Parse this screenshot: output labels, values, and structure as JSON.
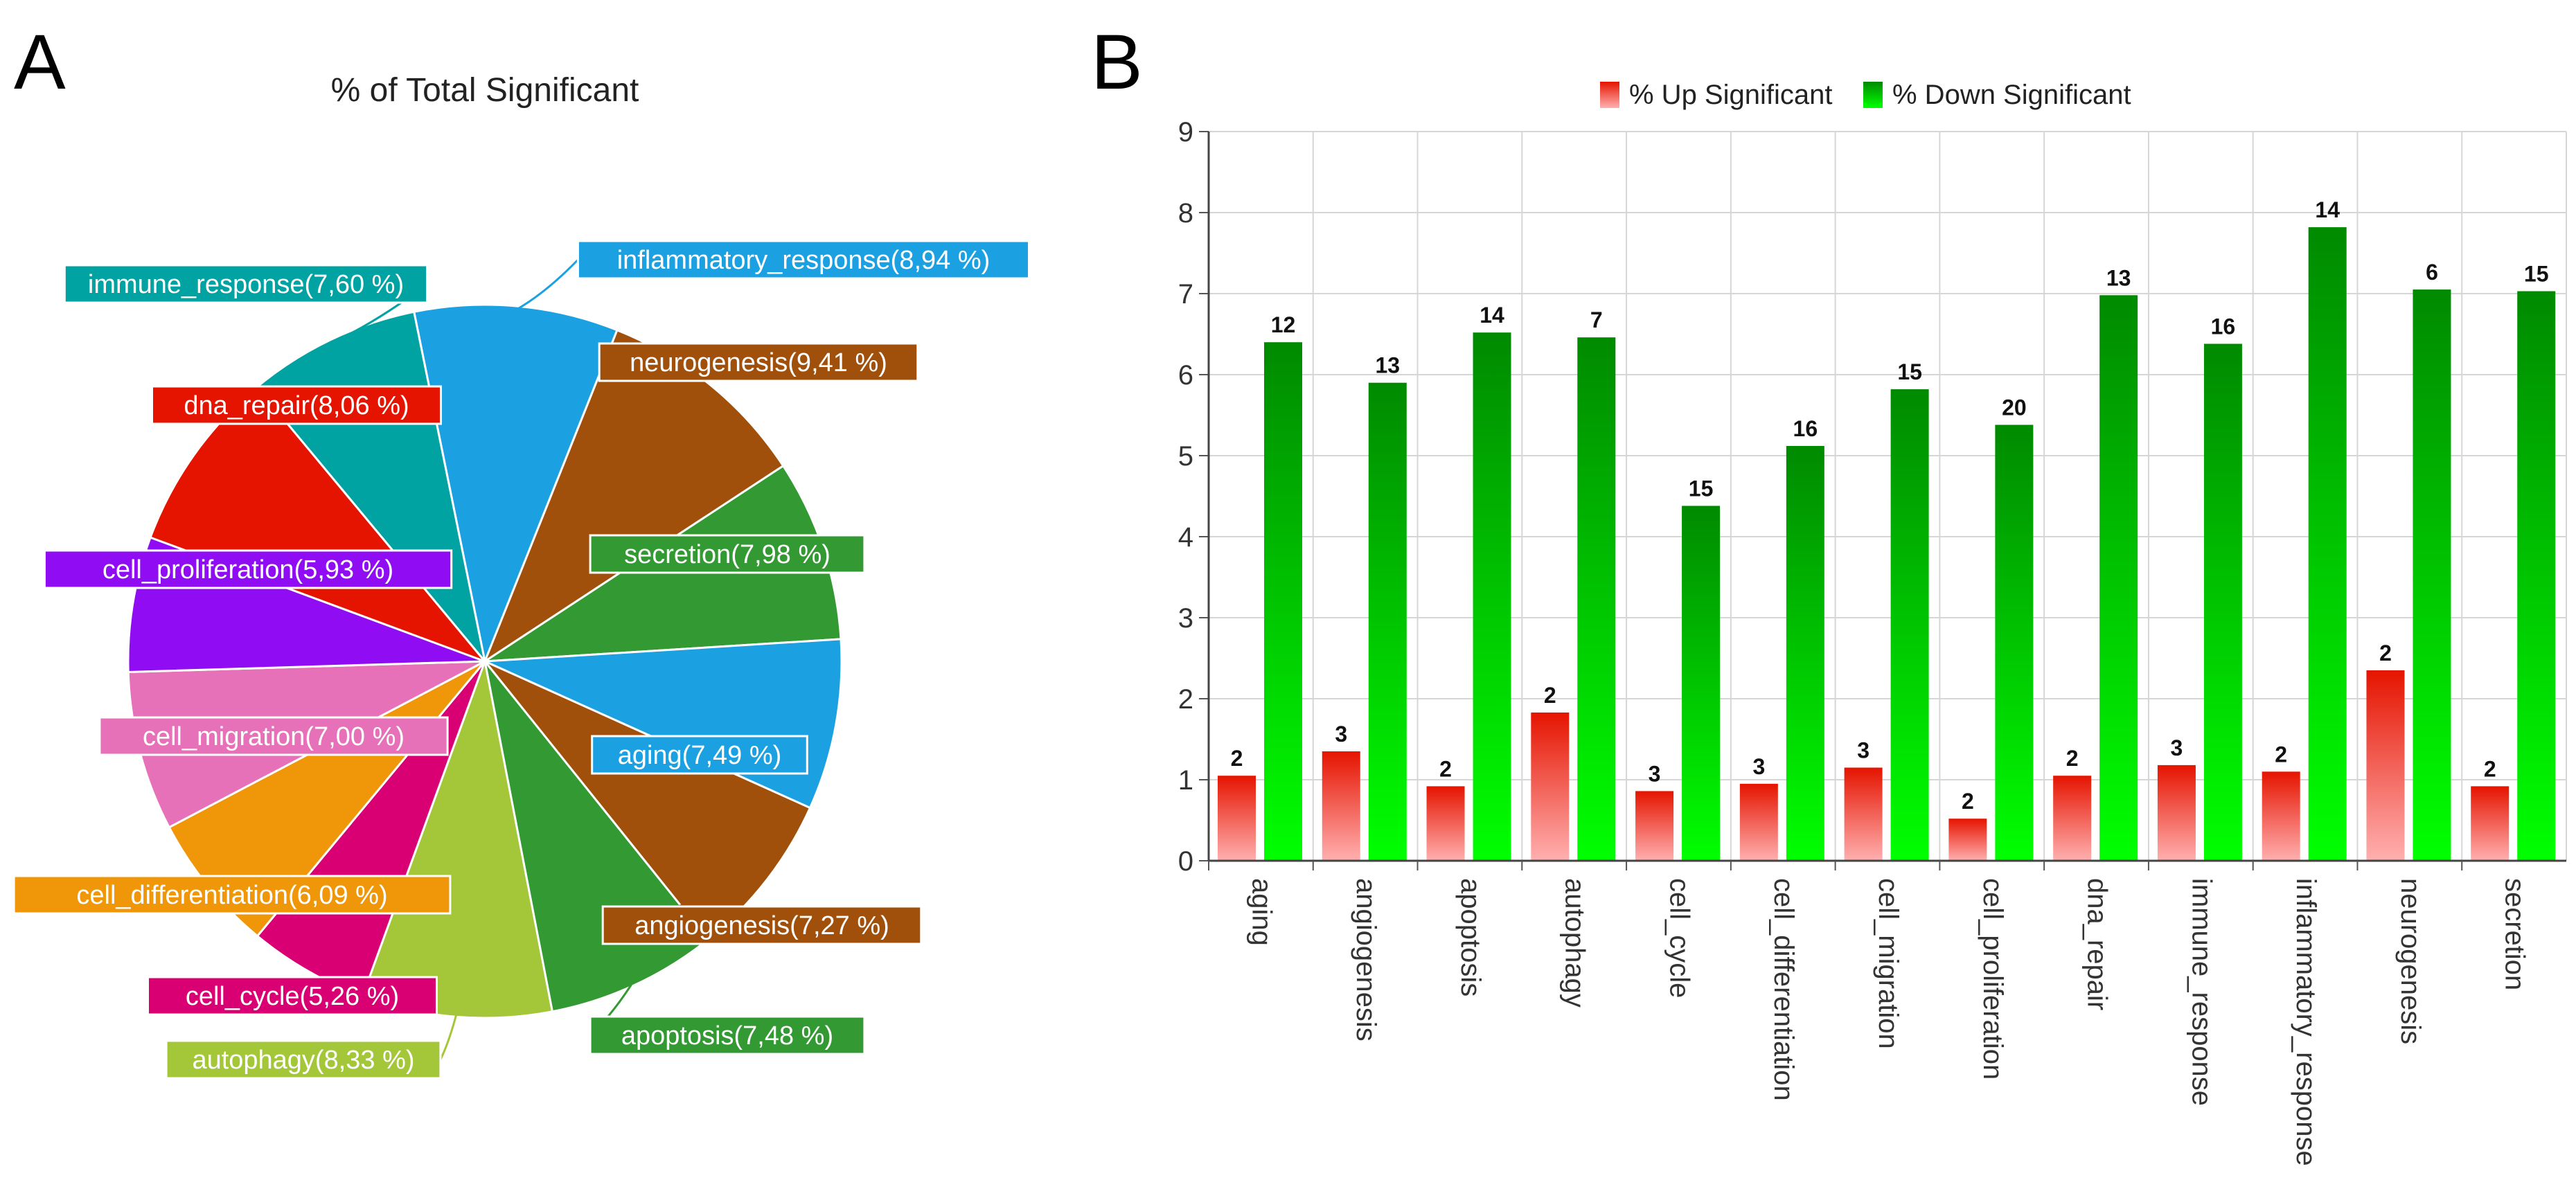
{
  "panels": {
    "a_letter": "A",
    "b_letter": "B"
  },
  "chart_data": [
    {
      "type": "pie",
      "title": "% of Total Significant",
      "slices": [
        {
          "label": "inflammatory_response",
          "value": 8.94,
          "display": "inflammatory_response(8,94 %)",
          "color": "#1ba1e2"
        },
        {
          "label": "neurogenesis",
          "value": 9.41,
          "display": "neurogenesis(9,41 %)",
          "color": "#a0500a"
        },
        {
          "label": "secretion",
          "value": 7.98,
          "display": "secretion(7,98 %)",
          "color": "#339933"
        },
        {
          "label": "aging",
          "value": 7.49,
          "display": "aging(7,49 %)",
          "color": "#1ba1e2"
        },
        {
          "label": "angiogenesis",
          "value": 7.27,
          "display": "angiogenesis(7,27 %)",
          "color": "#a0500a"
        },
        {
          "label": "apoptosis",
          "value": 7.48,
          "display": "apoptosis(7,48 %)",
          "color": "#339933"
        },
        {
          "label": "autophagy",
          "value": 8.33,
          "display": "autophagy(8,33 %)",
          "color": "#a4c639"
        },
        {
          "label": "cell_cycle",
          "value": 5.26,
          "display": "cell_cycle(5,26 %)",
          "color": "#d80073"
        },
        {
          "label": "cell_differentiation",
          "value": 6.09,
          "display": "cell_differentiation(6,09 %)",
          "color": "#f09609"
        },
        {
          "label": "cell_migration",
          "value": 7.0,
          "display": "cell_migration(7,00 %)",
          "color": "#e671b8"
        },
        {
          "label": "cell_proliferation",
          "value": 5.93,
          "display": "cell_proliferation(5,93 %)",
          "color": "#8f0cf3"
        },
        {
          "label": "dna_repair",
          "value": 8.06,
          "display": "dna_repair(8,06 %)",
          "color": "#e51400"
        },
        {
          "label": "immune_response",
          "value": 7.6,
          "display": "immune_response(7,60 %)",
          "color": "#00a2a2"
        }
      ]
    },
    {
      "type": "bar",
      "title": "",
      "categories": [
        "aging",
        "angiogenesis",
        "apoptosis",
        "autophagy",
        "cell_cycle",
        "cell_differentiation",
        "cell_migration",
        "cell_proliferation",
        "dna_repair",
        "immune_response",
        "inflammatory_response",
        "neurogenesis",
        "secretion"
      ],
      "series": [
        {
          "name": "% Up Significant",
          "color": "#e51400",
          "values": [
            1.05,
            1.35,
            0.92,
            1.83,
            0.86,
            0.95,
            1.15,
            0.52,
            1.05,
            1.18,
            1.1,
            2.35,
            0.92
          ],
          "labels": [
            "2",
            "3",
            "2",
            "2",
            "3",
            "3",
            "3",
            "2",
            "2",
            "3",
            "2",
            "2",
            "2"
          ]
        },
        {
          "name": "% Down Significant",
          "color": "#00a000",
          "values": [
            6.4,
            5.9,
            6.52,
            6.46,
            4.38,
            5.12,
            5.82,
            5.38,
            6.98,
            6.38,
            7.82,
            7.05,
            7.03
          ],
          "labels": [
            "12",
            "13",
            "14",
            "7",
            "15",
            "16",
            "15",
            "20",
            "13",
            "16",
            "14",
            "6",
            "15"
          ]
        }
      ],
      "xlabel": "",
      "ylabel": "",
      "ylim": [
        0,
        9
      ],
      "yticks": [
        "0",
        "1",
        "2",
        "3",
        "4",
        "5",
        "6",
        "7",
        "8",
        "9"
      ],
      "grid": true,
      "legend": "top-center"
    }
  ]
}
